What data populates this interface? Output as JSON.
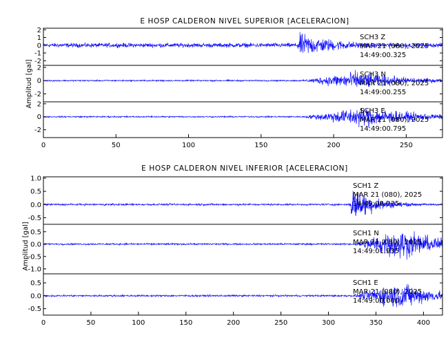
{
  "chart_data": [
    {
      "type": "line",
      "title": "E HOSP CALDERON NIVEL SUPERIOR [ACELERACION]",
      "xlabel": "",
      "ylabel": "Amplitud [gal]",
      "xlim": [
        0,
        275
      ],
      "xticks": [
        0,
        50,
        100,
        150,
        200,
        250
      ],
      "grid": false,
      "color": "#1010ff",
      "series": [
        {
          "name": "SCH3 Z",
          "ylim": [
            -2.6,
            2.2
          ],
          "yticks": [
            "2",
            "1",
            "0",
            "-1",
            "-2"
          ],
          "annotation": [
            "SCH3 Z",
            "MAR 21 (080), 2025",
            "14:49:00.325"
          ],
          "envelope": {
            "noise": 0.4,
            "onset": 174,
            "peak_time": 177,
            "peak": 2.2,
            "decay": 30
          }
        },
        {
          "name": "SCH3 N",
          "ylim": [
            -3.2,
            2.3
          ],
          "yticks": [
            "2",
            "0",
            "-2"
          ],
          "annotation": [
            "SCH3 N",
            "MAR 21 (080), 2025",
            "14:49:00.255"
          ],
          "envelope": {
            "noise": 0.15,
            "onset": 176,
            "peak_time": 215,
            "peak": 2.0,
            "decay": 35
          }
        },
        {
          "name": "SCH3 E",
          "ylim": [
            -3.2,
            2.3
          ],
          "yticks": [
            "2",
            "0",
            "-2"
          ],
          "annotation": [
            "SCH3 E",
            "MAR 21 (080), 2025",
            "14:49:00.795"
          ],
          "envelope": {
            "noise": 0.15,
            "onset": 176,
            "peak_time": 222,
            "peak": 2.3,
            "decay": 35
          }
        }
      ]
    },
    {
      "type": "line",
      "title": "E HOSP CALDERON NIVEL INFERIOR [ACELERACION]",
      "xlabel": "",
      "ylabel": "Amplitud [gal]",
      "xlim": [
        0,
        420
      ],
      "xticks": [
        0,
        50,
        100,
        150,
        200,
        250,
        300,
        350,
        400
      ],
      "grid": false,
      "color": "#1010ff",
      "series": [
        {
          "name": "SCH1 Z",
          "ylim": [
            -0.75,
            1.05
          ],
          "yticks": [
            "1.0",
            "0.5",
            "0.0",
            "-0.5"
          ],
          "annotation": [
            "SCH1 Z",
            "MAR 21 (080), 2025",
            "14:49:00.935"
          ],
          "envelope": {
            "noise": 0.05,
            "onset": 322,
            "peak_time": 325,
            "peak": 1.0,
            "decay": 25
          }
        },
        {
          "name": "SCH1 N",
          "ylim": [
            -1.2,
            0.8
          ],
          "yticks": [
            "0.5",
            "0.0",
            "-0.5",
            "-1.0"
          ],
          "annotation": [
            "SCH1 N",
            "MAR 21 (080), 2025",
            "14:49:01.935"
          ],
          "envelope": {
            "noise": 0.05,
            "onset": 324,
            "peak_time": 375,
            "peak": 0.9,
            "decay": 45
          }
        },
        {
          "name": "SCH1 E",
          "ylim": [
            -0.75,
            0.85
          ],
          "yticks": [
            "0.5",
            "0.0",
            "-0.5"
          ],
          "annotation": [
            "SCH1 E",
            "MAR 21 (080), 2025",
            "14:49:00.000"
          ],
          "envelope": {
            "noise": 0.05,
            "onset": 322,
            "peak_time": 376,
            "peak": 0.75,
            "decay": 40
          }
        }
      ]
    }
  ]
}
